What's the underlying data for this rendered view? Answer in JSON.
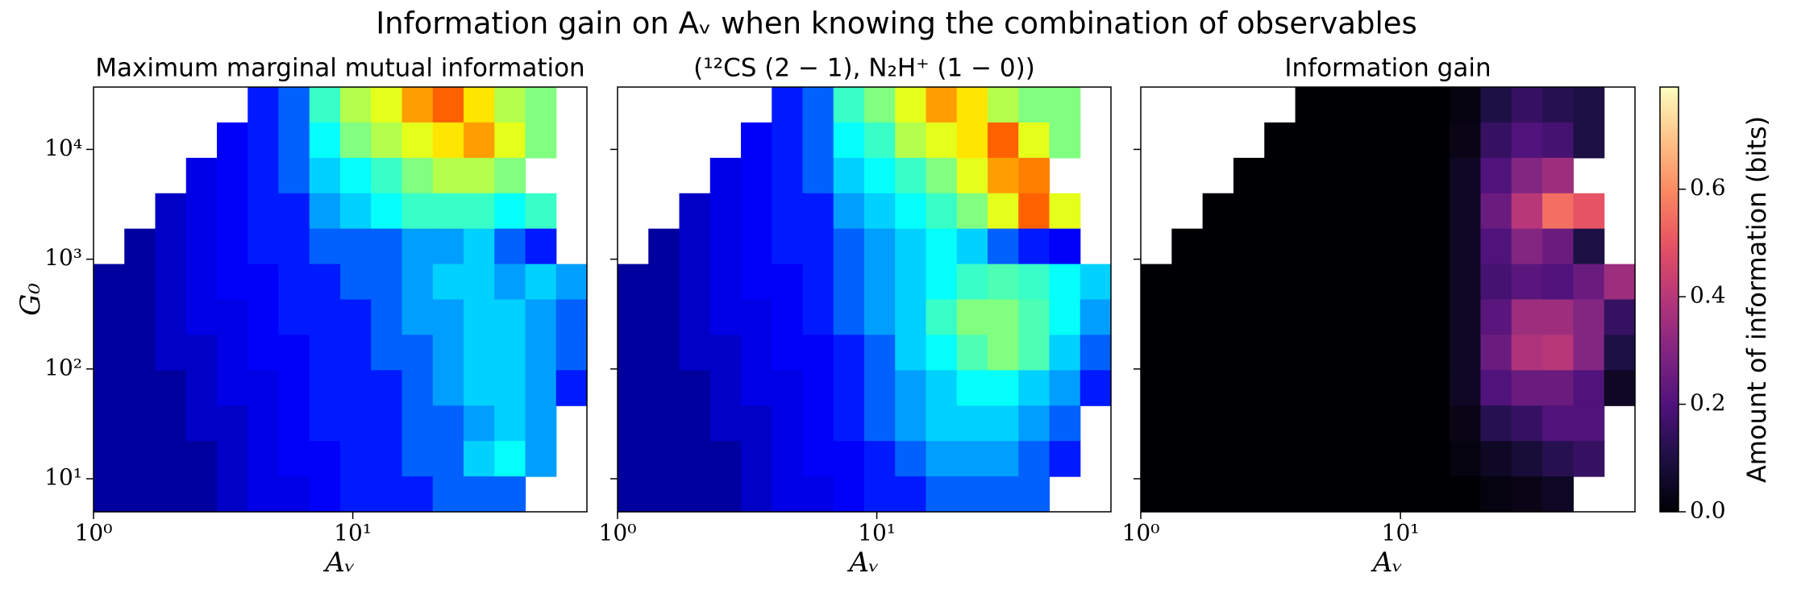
{
  "title": "Information gain on Aᵥ when knowing the combination of observables",
  "chart_data": [
    {
      "type": "heatmap",
      "title": "Maximum marginal mutual information",
      "xlabel": "Aᵥ",
      "ylabel": "G₀",
      "log_x": true,
      "log_y": true,
      "xlim": [
        1,
        80
      ],
      "ylim": [
        5,
        37000
      ],
      "xticks": [
        {
          "value": 1,
          "label": "10⁰"
        },
        {
          "value": 10,
          "label": "10¹"
        }
      ],
      "yticks": [
        {
          "value": 10,
          "label": "10¹"
        },
        {
          "value": 100,
          "label": "10²"
        },
        {
          "value": 1000,
          "label": "10³"
        },
        {
          "value": 10000,
          "label": "10⁴"
        }
      ],
      "colormap": "jet",
      "vlim": [
        0,
        1
      ],
      "values": [
        [
          null,
          null,
          null,
          null,
          null,
          0.15,
          0.22,
          0.43,
          0.55,
          0.6,
          0.72,
          0.78,
          0.65,
          0.55,
          0.5,
          null
        ],
        [
          null,
          null,
          null,
          null,
          0.12,
          0.15,
          0.22,
          0.38,
          0.5,
          0.55,
          0.6,
          0.65,
          0.72,
          0.6,
          0.5,
          null
        ],
        [
          null,
          null,
          null,
          0.1,
          0.12,
          0.15,
          0.22,
          0.33,
          0.38,
          0.43,
          0.5,
          0.55,
          0.55,
          0.5,
          null,
          null
        ],
        [
          null,
          null,
          0.07,
          0.1,
          0.12,
          0.15,
          0.15,
          0.28,
          0.33,
          0.38,
          0.43,
          0.43,
          0.43,
          0.38,
          0.43,
          null
        ],
        [
          null,
          0.03,
          0.07,
          0.1,
          0.12,
          0.15,
          0.15,
          0.22,
          0.22,
          0.22,
          0.28,
          0.28,
          0.33,
          0.22,
          0.15,
          null
        ],
        [
          0.03,
          0.03,
          0.07,
          0.1,
          0.12,
          0.12,
          0.15,
          0.15,
          0.22,
          0.22,
          0.28,
          0.33,
          0.33,
          0.28,
          0.33,
          0.28
        ],
        [
          0.03,
          0.03,
          0.07,
          0.1,
          0.1,
          0.12,
          0.15,
          0.15,
          0.15,
          0.22,
          0.28,
          0.28,
          0.33,
          0.33,
          0.28,
          0.22
        ],
        [
          0.03,
          0.03,
          0.07,
          0.07,
          0.1,
          0.12,
          0.12,
          0.15,
          0.15,
          0.22,
          0.22,
          0.28,
          0.33,
          0.33,
          0.28,
          0.22
        ],
        [
          0.03,
          0.03,
          0.03,
          0.07,
          0.1,
          0.1,
          0.12,
          0.15,
          0.15,
          0.15,
          0.22,
          0.28,
          0.33,
          0.33,
          0.28,
          0.15
        ],
        [
          0.03,
          0.03,
          0.03,
          0.07,
          0.07,
          0.1,
          0.12,
          0.15,
          0.15,
          0.15,
          0.22,
          0.22,
          0.28,
          0.33,
          0.28,
          null
        ],
        [
          0.03,
          0.03,
          0.03,
          0.03,
          0.07,
          0.1,
          0.12,
          0.12,
          0.15,
          0.15,
          0.22,
          0.22,
          0.33,
          0.38,
          0.28,
          null
        ],
        [
          0.03,
          0.03,
          0.03,
          0.03,
          0.07,
          0.1,
          0.1,
          0.12,
          0.15,
          0.15,
          0.15,
          0.22,
          0.22,
          0.22,
          null,
          null
        ]
      ]
    },
    {
      "type": "heatmap",
      "title": "(¹²CS (2 − 1), N₂H⁺ (1 − 0))",
      "xlabel": "Aᵥ",
      "log_x": true,
      "log_y": true,
      "xlim": [
        1,
        80
      ],
      "ylim": [
        5,
        37000
      ],
      "xticks": [
        {
          "value": 1,
          "label": "10⁰"
        },
        {
          "value": 10,
          "label": "10¹"
        }
      ],
      "yticks": [
        10,
        100,
        1000,
        10000
      ],
      "colormap": "jet",
      "vlim": [
        0,
        1
      ],
      "values": [
        [
          null,
          null,
          null,
          null,
          null,
          0.15,
          0.22,
          0.43,
          0.5,
          0.6,
          0.72,
          0.65,
          0.55,
          0.5,
          0.5,
          null
        ],
        [
          null,
          null,
          null,
          null,
          0.12,
          0.15,
          0.22,
          0.38,
          0.43,
          0.55,
          0.6,
          0.65,
          0.78,
          0.6,
          0.5,
          null
        ],
        [
          null,
          null,
          null,
          0.1,
          0.12,
          0.15,
          0.22,
          0.33,
          0.38,
          0.43,
          0.5,
          0.6,
          0.72,
          0.75,
          null,
          null
        ],
        [
          null,
          null,
          0.07,
          0.1,
          0.12,
          0.15,
          0.15,
          0.28,
          0.33,
          0.38,
          0.43,
          0.5,
          0.6,
          0.78,
          0.6,
          null
        ],
        [
          null,
          0.03,
          0.07,
          0.1,
          0.12,
          0.15,
          0.15,
          0.22,
          0.28,
          0.33,
          0.38,
          0.33,
          0.22,
          0.15,
          0.12,
          null
        ],
        [
          0.03,
          0.03,
          0.07,
          0.1,
          0.12,
          0.12,
          0.15,
          0.22,
          0.28,
          0.33,
          0.38,
          0.43,
          0.45,
          0.43,
          0.38,
          0.33
        ],
        [
          0.03,
          0.03,
          0.07,
          0.1,
          0.1,
          0.12,
          0.15,
          0.22,
          0.28,
          0.33,
          0.43,
          0.5,
          0.5,
          0.45,
          0.38,
          0.28
        ],
        [
          0.03,
          0.03,
          0.07,
          0.07,
          0.1,
          0.12,
          0.12,
          0.15,
          0.22,
          0.33,
          0.38,
          0.45,
          0.5,
          0.45,
          0.33,
          0.22
        ],
        [
          0.03,
          0.03,
          0.03,
          0.07,
          0.1,
          0.1,
          0.12,
          0.15,
          0.22,
          0.28,
          0.33,
          0.38,
          0.38,
          0.33,
          0.28,
          0.15
        ],
        [
          0.03,
          0.03,
          0.03,
          0.07,
          0.07,
          0.1,
          0.12,
          0.15,
          0.22,
          0.28,
          0.33,
          0.33,
          0.33,
          0.28,
          0.22,
          null
        ],
        [
          0.03,
          0.03,
          0.03,
          0.03,
          0.07,
          0.1,
          0.12,
          0.12,
          0.15,
          0.22,
          0.28,
          0.28,
          0.28,
          0.22,
          0.15,
          null
        ],
        [
          0.03,
          0.03,
          0.03,
          0.03,
          0.07,
          0.1,
          0.1,
          0.12,
          0.15,
          0.15,
          0.22,
          0.22,
          0.22,
          0.22,
          null,
          null
        ]
      ]
    },
    {
      "type": "heatmap",
      "title": "Information gain",
      "xlabel": "Aᵥ",
      "log_x": true,
      "log_y": true,
      "xlim": [
        1,
        80
      ],
      "ylim": [
        5,
        37000
      ],
      "xticks": [
        {
          "value": 1,
          "label": "10⁰"
        },
        {
          "value": 10,
          "label": "10¹"
        }
      ],
      "yticks": [
        10,
        100,
        1000,
        10000
      ],
      "colormap": "magma",
      "vlim": [
        0,
        0.79
      ],
      "colorbar": {
        "label": "Amount of information (bits)",
        "ticks": [
          {
            "value": 0,
            "label": "0.0"
          },
          0.2,
          0.4,
          0.6
        ]
      },
      "values": [
        [
          null,
          null,
          null,
          null,
          null,
          0,
          0,
          0,
          0,
          0,
          0.02,
          0.1,
          0.15,
          0.12,
          0.1,
          null
        ],
        [
          null,
          null,
          null,
          null,
          0,
          0,
          0,
          0,
          0,
          0,
          0.03,
          0.15,
          0.2,
          0.18,
          0.1,
          null
        ],
        [
          null,
          null,
          null,
          0,
          0,
          0,
          0,
          0,
          0,
          0,
          0.05,
          0.2,
          0.3,
          0.35,
          null,
          null
        ],
        [
          null,
          null,
          0,
          0,
          0,
          0,
          0,
          0,
          0,
          0,
          0.05,
          0.25,
          0.4,
          0.55,
          0.5,
          null
        ],
        [
          null,
          0,
          0,
          0,
          0,
          0,
          0,
          0,
          0,
          0,
          0.05,
          0.2,
          0.3,
          0.25,
          0.1,
          null
        ],
        [
          0,
          0,
          0,
          0,
          0,
          0,
          0,
          0,
          0,
          0,
          0.05,
          0.18,
          0.22,
          0.2,
          0.25,
          0.35
        ],
        [
          0,
          0,
          0,
          0,
          0,
          0,
          0,
          0,
          0,
          0,
          0.05,
          0.22,
          0.35,
          0.35,
          0.3,
          0.15
        ],
        [
          0,
          0,
          0,
          0,
          0,
          0,
          0,
          0,
          0,
          0,
          0.05,
          0.25,
          0.38,
          0.4,
          0.3,
          0.1
        ],
        [
          0,
          0,
          0,
          0,
          0,
          0,
          0,
          0,
          0,
          0,
          0.05,
          0.2,
          0.25,
          0.25,
          0.2,
          0.05
        ],
        [
          0,
          0,
          0,
          0,
          0,
          0,
          0,
          0,
          0,
          0,
          0.03,
          0.12,
          0.15,
          0.2,
          0.2,
          null
        ],
        [
          0,
          0,
          0,
          0,
          0,
          0,
          0,
          0,
          0,
          0,
          0.02,
          0.05,
          0.08,
          0.12,
          0.15,
          null
        ],
        [
          0,
          0,
          0,
          0,
          0,
          0,
          0,
          0,
          0,
          0,
          0,
          0.02,
          0.03,
          0.05,
          null,
          null
        ]
      ]
    }
  ]
}
